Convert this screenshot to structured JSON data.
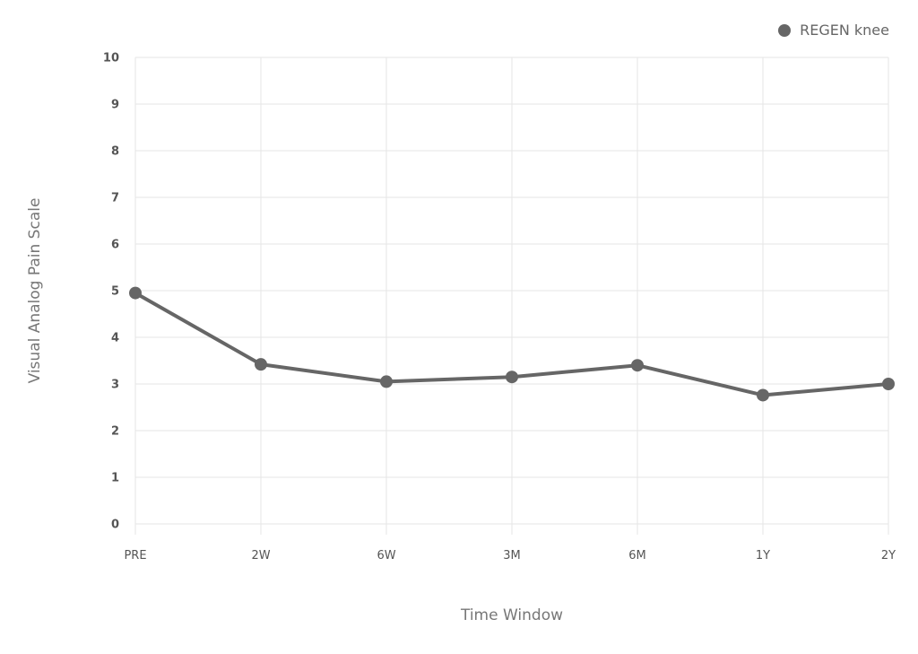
{
  "chart_data": {
    "type": "line",
    "title": "",
    "xlabel": "Time Window",
    "ylabel": "Visual Analog Pain Scale",
    "categories": [
      "PRE",
      "2W",
      "6W",
      "3M",
      "6M",
      "1Y",
      "2Y"
    ],
    "series": [
      {
        "name": "REGEN knee",
        "values": [
          4.95,
          3.42,
          3.05,
          3.15,
          3.4,
          2.76,
          3.0
        ],
        "color": "#666666"
      }
    ],
    "ylim": [
      0,
      10
    ],
    "yticks": [
      "0",
      "1",
      "2",
      "3",
      "4",
      "5",
      "6",
      "7",
      "8",
      "9",
      "10"
    ],
    "grid": true,
    "legend_position": "top-right"
  }
}
